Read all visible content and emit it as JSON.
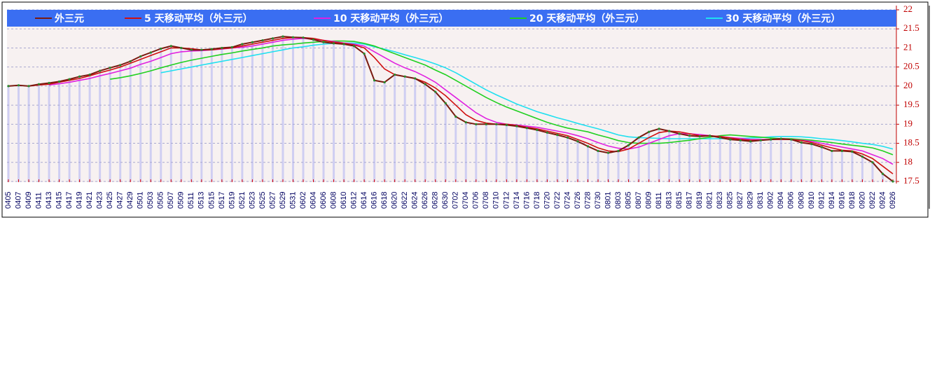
{
  "chart_data": {
    "type": "line",
    "categories": [
      "0405",
      "0407",
      "0409",
      "0411",
      "0413",
      "0415",
      "0417",
      "0419",
      "0421",
      "0423",
      "0425",
      "0427",
      "0429",
      "0501",
      "0503",
      "0505",
      "0507",
      "0509",
      "0511",
      "0513",
      "0515",
      "0517",
      "0519",
      "0521",
      "0523",
      "0525",
      "0527",
      "0529",
      "0531",
      "0602",
      "0604",
      "0606",
      "0608",
      "0610",
      "0612",
      "0614",
      "0616",
      "0618",
      "0620",
      "0622",
      "0624",
      "0626",
      "0628",
      "0630",
      "0702",
      "0704",
      "0706",
      "0708",
      "0710",
      "0712",
      "0714",
      "0716",
      "0718",
      "0720",
      "0722",
      "0724",
      "0726",
      "0728",
      "0730",
      "0801",
      "0803",
      "0805",
      "0807",
      "0809",
      "0811",
      "0813",
      "0815",
      "0817",
      "0819",
      "0821",
      "0823",
      "0825",
      "0827",
      "0829",
      "0831",
      "0902",
      "0904",
      "0906",
      "0908",
      "0910",
      "0912",
      "0914",
      "0916",
      "0918",
      "0920",
      "0922",
      "0924",
      "0926"
    ],
    "series": [
      {
        "name": "外三元",
        "color": "#7a1a10",
        "values": [
          20.0,
          20.02,
          20.0,
          20.05,
          20.08,
          20.12,
          20.18,
          20.25,
          20.3,
          20.4,
          20.48,
          20.55,
          20.65,
          20.78,
          20.88,
          20.98,
          21.05,
          21.0,
          20.95,
          20.95,
          20.97,
          21.0,
          21.02,
          21.1,
          21.15,
          21.2,
          21.25,
          21.3,
          21.28,
          21.27,
          21.22,
          21.15,
          21.12,
          21.1,
          21.05,
          20.85,
          20.15,
          20.1,
          20.3,
          20.25,
          20.2,
          20.05,
          19.85,
          19.55,
          19.2,
          19.05,
          19.0,
          19.0,
          19.0,
          18.98,
          18.95,
          18.9,
          18.85,
          18.78,
          18.72,
          18.65,
          18.55,
          18.42,
          18.3,
          18.25,
          18.3,
          18.45,
          18.65,
          18.8,
          18.88,
          18.82,
          18.75,
          18.7,
          18.68,
          18.7,
          18.65,
          18.6,
          18.58,
          18.55,
          18.58,
          18.6,
          18.62,
          18.6,
          18.52,
          18.48,
          18.4,
          18.3,
          18.3,
          18.28,
          18.15,
          18.0,
          17.7,
          17.5
        ]
      },
      {
        "name": "5 天移动平均（外三元）",
        "color": "#d01010",
        "values": [
          null,
          null,
          20.0,
          20.03,
          20.05,
          20.1,
          20.15,
          20.2,
          20.27,
          20.35,
          20.42,
          20.5,
          20.6,
          20.7,
          20.8,
          20.9,
          21.0,
          21.0,
          20.98,
          20.95,
          20.95,
          20.98,
          21.0,
          21.05,
          21.1,
          21.15,
          21.2,
          21.25,
          21.27,
          21.27,
          21.25,
          21.2,
          21.15,
          21.12,
          21.08,
          21.0,
          20.75,
          20.45,
          20.3,
          20.25,
          20.2,
          20.1,
          19.95,
          19.75,
          19.5,
          19.25,
          19.1,
          19.03,
          19.0,
          19.0,
          18.97,
          18.92,
          18.88,
          18.82,
          18.76,
          18.7,
          18.6,
          18.5,
          18.38,
          18.3,
          18.28,
          18.35,
          18.5,
          18.65,
          18.78,
          18.82,
          18.8,
          18.75,
          18.7,
          18.7,
          18.68,
          18.64,
          18.6,
          18.58,
          18.58,
          18.6,
          18.6,
          18.6,
          18.57,
          18.52,
          18.45,
          18.38,
          18.32,
          18.3,
          18.22,
          18.1,
          17.9,
          17.7
        ]
      },
      {
        "name": "10 天移动平均（外三元）",
        "color": "#e020e0",
        "values": [
          null,
          null,
          null,
          null,
          20.03,
          20.06,
          20.1,
          20.15,
          20.2,
          20.27,
          20.33,
          20.4,
          20.47,
          20.57,
          20.65,
          20.75,
          20.85,
          20.9,
          20.92,
          20.93,
          20.95,
          20.97,
          21.0,
          21.02,
          21.05,
          21.1,
          21.15,
          21.2,
          21.23,
          21.25,
          21.23,
          21.2,
          21.17,
          21.13,
          21.1,
          21.05,
          20.9,
          20.75,
          20.6,
          20.48,
          20.38,
          20.25,
          20.1,
          19.9,
          19.7,
          19.5,
          19.3,
          19.15,
          19.05,
          19.0,
          18.98,
          18.95,
          18.92,
          18.87,
          18.82,
          18.77,
          18.7,
          18.62,
          18.52,
          18.43,
          18.37,
          18.35,
          18.4,
          18.5,
          18.6,
          18.7,
          18.75,
          18.75,
          18.73,
          18.7,
          18.68,
          18.65,
          18.63,
          18.6,
          18.6,
          18.6,
          18.6,
          18.6,
          18.58,
          18.55,
          18.5,
          18.45,
          18.4,
          18.35,
          18.3,
          18.2,
          18.1,
          17.95
        ]
      },
      {
        "name": "20 天移动平均（外三元）",
        "color": "#20d020",
        "values": [
          null,
          null,
          null,
          null,
          null,
          null,
          null,
          null,
          null,
          null,
          20.18,
          20.22,
          20.27,
          20.33,
          20.4,
          20.48,
          20.55,
          20.62,
          20.68,
          20.73,
          20.78,
          20.83,
          20.87,
          20.92,
          20.96,
          21.0,
          21.05,
          21.08,
          21.1,
          21.13,
          21.15,
          21.17,
          21.18,
          21.18,
          21.17,
          21.12,
          21.05,
          20.95,
          20.85,
          20.75,
          20.65,
          20.55,
          20.42,
          20.3,
          20.15,
          20.0,
          19.85,
          19.7,
          19.57,
          19.45,
          19.35,
          19.25,
          19.15,
          19.05,
          18.97,
          18.9,
          18.85,
          18.8,
          18.72,
          18.65,
          18.57,
          18.52,
          18.5,
          18.5,
          18.5,
          18.52,
          18.55,
          18.58,
          18.62,
          18.66,
          18.7,
          18.72,
          18.7,
          18.68,
          18.66,
          18.64,
          18.62,
          18.62,
          18.6,
          18.58,
          18.55,
          18.52,
          18.48,
          18.45,
          18.42,
          18.38,
          18.3,
          18.2
        ]
      },
      {
        "name": "30 天移动平均（外三元）",
        "color": "#20e0f0",
        "values": [
          null,
          null,
          null,
          null,
          null,
          null,
          null,
          null,
          null,
          null,
          null,
          null,
          null,
          null,
          null,
          20.35,
          20.4,
          20.45,
          20.5,
          20.55,
          20.6,
          20.65,
          20.7,
          20.75,
          20.8,
          20.85,
          20.9,
          20.95,
          21.0,
          21.03,
          21.07,
          21.1,
          21.12,
          21.13,
          21.13,
          21.1,
          21.03,
          20.97,
          20.9,
          20.82,
          20.75,
          20.67,
          20.58,
          20.48,
          20.35,
          20.2,
          20.05,
          19.9,
          19.77,
          19.65,
          19.53,
          19.43,
          19.33,
          19.25,
          19.17,
          19.1,
          19.02,
          18.95,
          18.88,
          18.8,
          18.72,
          18.67,
          18.65,
          18.64,
          18.63,
          18.62,
          18.62,
          18.62,
          18.62,
          18.62,
          18.62,
          18.62,
          18.63,
          18.64,
          18.65,
          18.67,
          18.68,
          18.68,
          18.67,
          18.65,
          18.62,
          18.6,
          18.57,
          18.54,
          18.5,
          18.47,
          18.42,
          18.35
        ]
      }
    ],
    "ylim": [
      17.5,
      22
    ],
    "yticks": [
      17.5,
      18,
      18.5,
      19,
      19.5,
      20,
      20.5,
      21,
      21.5,
      22
    ],
    "grid": true,
    "bar_color": "#c8c8f2"
  }
}
